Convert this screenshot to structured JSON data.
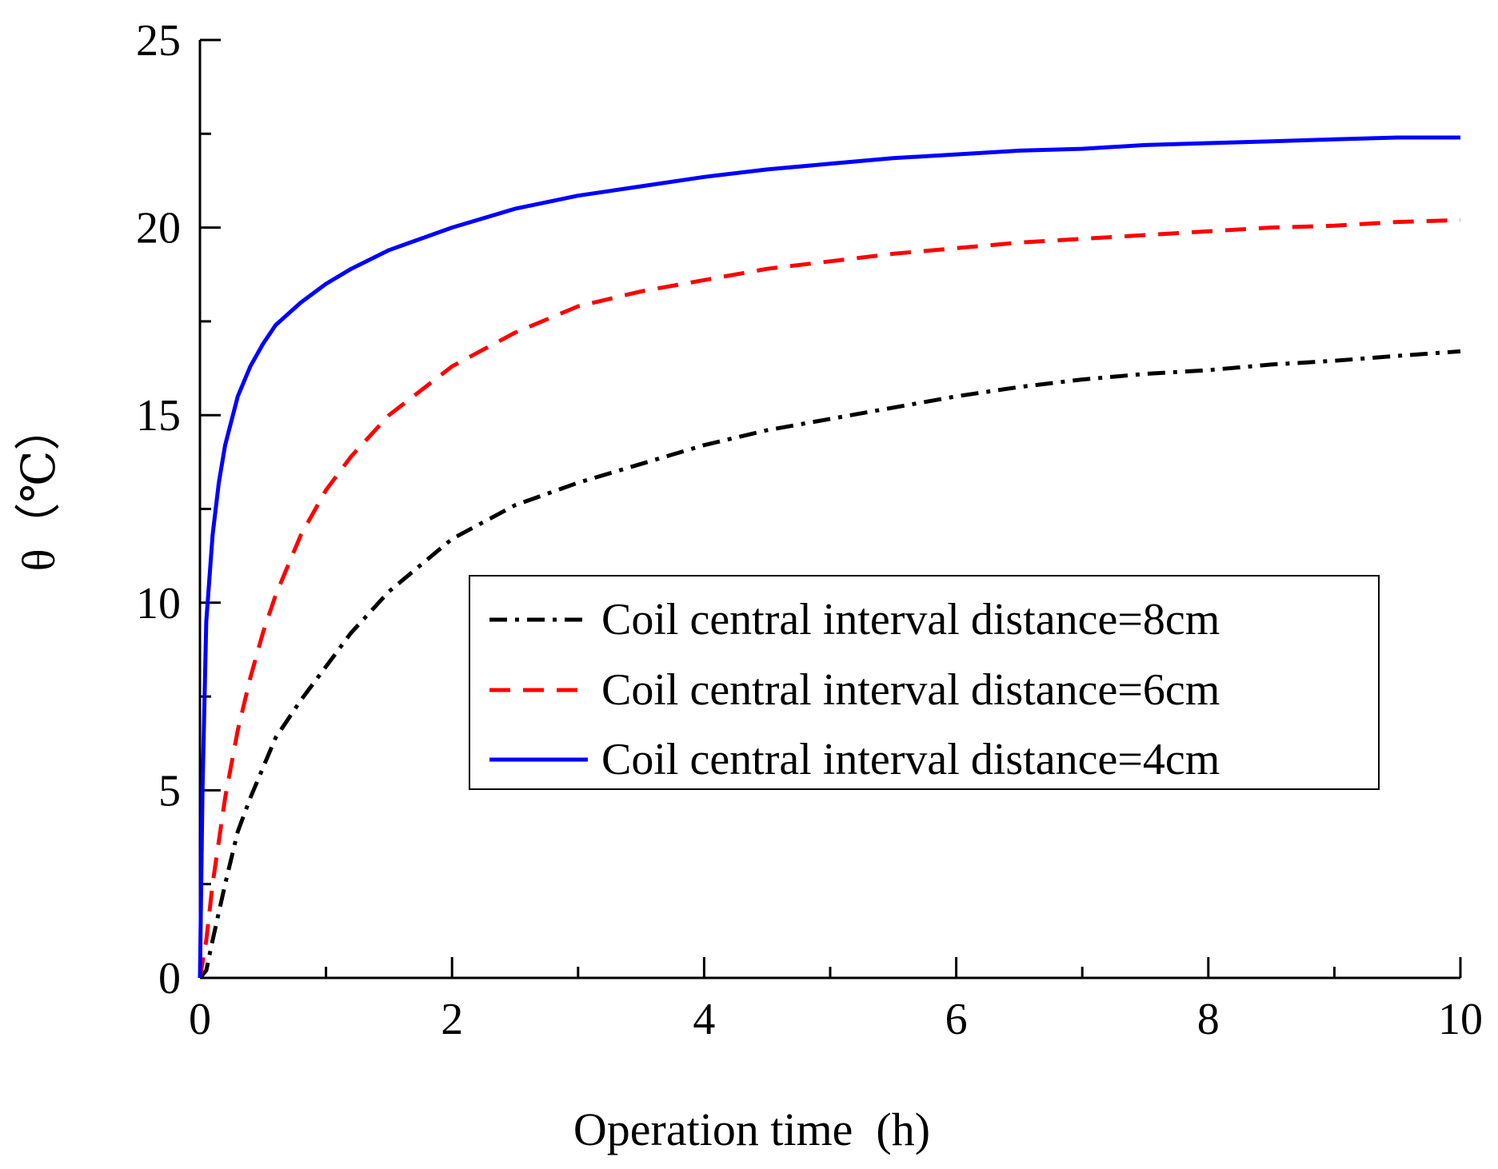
{
  "chart_data": {
    "type": "line",
    "title": "",
    "xlabel": "Operation time  (h)",
    "ylabel": "θ（℃）",
    "xlim": [
      0,
      10
    ],
    "ylim": [
      0,
      25
    ],
    "x_ticks": [
      "0",
      "2",
      "4",
      "6",
      "8",
      "10"
    ],
    "y_ticks": [
      "0",
      "5",
      "10",
      "15",
      "20",
      "25"
    ],
    "grid": false,
    "legend_position": "center-right",
    "series": [
      {
        "name": "Coil central interval distance=8cm",
        "color": "#000000",
        "style": "dash-dot",
        "x": [
          0,
          0.05,
          0.1,
          0.2,
          0.3,
          0.4,
          0.5,
          0.6,
          0.8,
          1.0,
          1.2,
          1.5,
          2.0,
          2.5,
          3.0,
          3.5,
          4.0,
          4.5,
          5.0,
          5.5,
          6.0,
          6.5,
          7.0,
          7.5,
          8.0,
          8.5,
          9.0,
          9.5,
          10.0
        ],
        "values": [
          0,
          0.2,
          1.0,
          2.5,
          3.9,
          4.8,
          5.6,
          6.4,
          7.4,
          8.3,
          9.2,
          10.3,
          11.7,
          12.6,
          13.2,
          13.7,
          14.2,
          14.6,
          14.9,
          15.2,
          15.5,
          15.75,
          15.95,
          16.1,
          16.2,
          16.35,
          16.45,
          16.58,
          16.7
        ]
      },
      {
        "name": "Coil central interval distance=6cm",
        "color": "#ff0000",
        "style": "dashed",
        "x": [
          0,
          0.05,
          0.1,
          0.2,
          0.3,
          0.4,
          0.5,
          0.6,
          0.8,
          1.0,
          1.2,
          1.5,
          2.0,
          2.5,
          3.0,
          3.5,
          4.0,
          4.5,
          5.0,
          5.5,
          6.0,
          6.5,
          7.0,
          7.5,
          8.0,
          8.5,
          9.0,
          9.5,
          10.0
        ],
        "values": [
          0,
          1.0,
          2.5,
          4.8,
          6.6,
          8.0,
          9.2,
          10.2,
          11.8,
          13.0,
          13.9,
          15.0,
          16.3,
          17.2,
          17.9,
          18.3,
          18.6,
          18.9,
          19.1,
          19.3,
          19.45,
          19.6,
          19.7,
          19.8,
          19.9,
          20.0,
          20.05,
          20.15,
          20.2
        ]
      },
      {
        "name": "Coil central interval distance=4cm",
        "color": "#0000ff",
        "style": "solid",
        "x": [
          0,
          0.02,
          0.05,
          0.1,
          0.15,
          0.2,
          0.3,
          0.4,
          0.5,
          0.6,
          0.8,
          1.0,
          1.2,
          1.5,
          2.0,
          2.5,
          3.0,
          3.5,
          4.0,
          4.5,
          5.0,
          5.5,
          6.0,
          6.5,
          7.0,
          7.5,
          8.0,
          8.5,
          9.0,
          9.5,
          10.0
        ],
        "values": [
          0,
          5.0,
          9.5,
          11.8,
          13.2,
          14.2,
          15.5,
          16.3,
          16.9,
          17.4,
          18.0,
          18.5,
          18.9,
          19.4,
          20.0,
          20.5,
          20.85,
          21.1,
          21.35,
          21.55,
          21.7,
          21.85,
          21.95,
          22.05,
          22.1,
          22.2,
          22.25,
          22.3,
          22.35,
          22.4,
          22.4
        ]
      }
    ]
  }
}
